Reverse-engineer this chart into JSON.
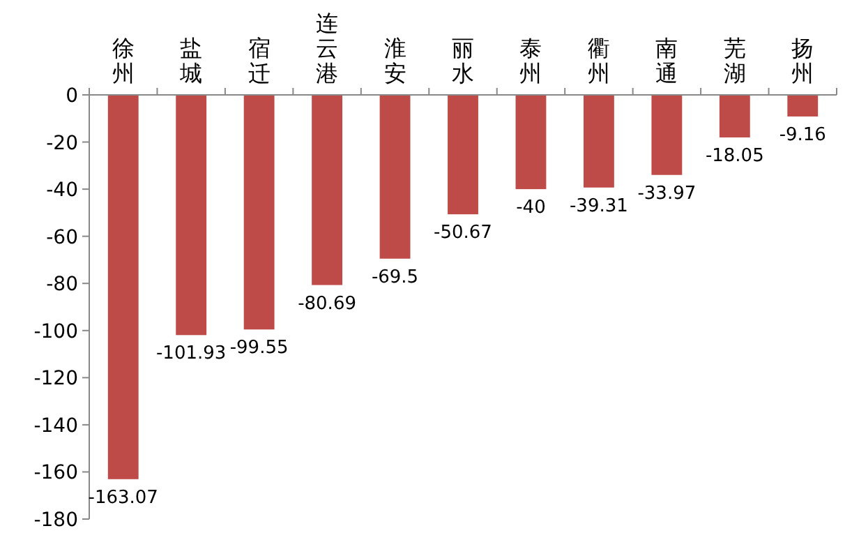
{
  "chart_data": {
    "type": "bar",
    "categories": [
      "徐州",
      "盐城",
      "宿迁",
      "连云港",
      "淮安",
      "丽水",
      "泰州",
      "衢州",
      "南通",
      "芜湖",
      "扬州"
    ],
    "values": [
      -163.07,
      -101.93,
      -99.55,
      -80.69,
      -69.5,
      -50.67,
      -40,
      -39.31,
      -33.97,
      -18.05,
      -9.16
    ],
    "color": "#be4b48",
    "ylim": [
      -180,
      0
    ],
    "yticks": [
      -180,
      -160,
      -140,
      -120,
      -100,
      -80,
      -60,
      -40,
      -20,
      0
    ],
    "data_labels": true
  }
}
